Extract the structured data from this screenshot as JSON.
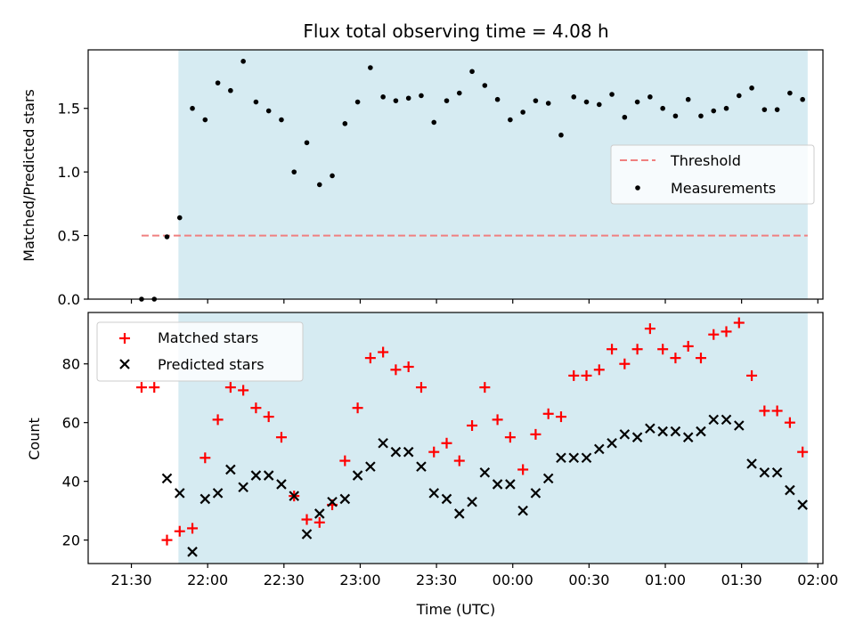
{
  "chart_data": [
    {
      "type": "scatter",
      "title": "Flux total observing time = 4.08 h",
      "xlabel": "",
      "ylabel": "Matched/Predicted stars",
      "x_unit": "minutes since 21:30 UTC",
      "xlim": [
        -17,
        272
      ],
      "ylim": [
        0,
        1.96
      ],
      "yticks": [
        0.0,
        0.5,
        1.0,
        1.5
      ],
      "ytick_labels": [
        "0.0",
        "0.5",
        "1.0",
        "1.5"
      ],
      "shaded_region": {
        "x_start": 18.5,
        "x_end": 266,
        "color": "#add8e6"
      },
      "threshold": {
        "name": "Threshold",
        "value": 0.5,
        "x_start": 4,
        "x_end": 266,
        "color": "#f08080"
      },
      "legend_position": "center-right",
      "series": [
        {
          "name": "Measurements",
          "marker": "dot",
          "color": "#000000",
          "x": [
            4,
            9,
            14,
            19,
            24,
            29,
            34,
            39,
            44,
            49,
            54,
            59,
            64,
            69,
            74,
            79,
            84,
            89,
            94,
            99,
            104,
            109,
            114,
            119,
            124,
            129,
            134,
            139,
            144,
            149,
            154,
            159,
            164,
            169,
            174,
            179,
            184,
            189,
            194,
            199,
            204,
            209,
            214,
            219,
            224,
            229,
            234,
            239,
            244,
            249,
            254,
            259,
            264
          ],
          "y": [
            0.0,
            0.0,
            0.49,
            0.64,
            1.5,
            1.41,
            1.7,
            1.64,
            1.87,
            1.55,
            1.48,
            1.41,
            1.0,
            1.23,
            0.9,
            0.97,
            1.38,
            1.55,
            1.82,
            1.59,
            1.56,
            1.58,
            1.6,
            1.39,
            1.56,
            1.62,
            1.79,
            1.68,
            1.57,
            1.41,
            1.47,
            1.56,
            1.54,
            1.29,
            1.59,
            1.55,
            1.53,
            1.61,
            1.43,
            1.55,
            1.59,
            1.5,
            1.44,
            1.57,
            1.44,
            1.48,
            1.5,
            1.6,
            1.66,
            1.49,
            1.49,
            1.62,
            1.57
          ]
        }
      ]
    },
    {
      "type": "scatter",
      "title": "",
      "xlabel": "Time (UTC)",
      "ylabel": "Count",
      "x_unit": "minutes since 21:30 UTC",
      "xlim": [
        -17,
        272
      ],
      "ylim": [
        12,
        97.5
      ],
      "yticks": [
        20,
        40,
        60,
        80
      ],
      "ytick_labels": [
        "20",
        "40",
        "60",
        "80"
      ],
      "xticks": [
        0,
        30,
        60,
        90,
        120,
        150,
        180,
        210,
        240,
        270
      ],
      "xtick_labels": [
        "21:30",
        "22:00",
        "22:30",
        "23:00",
        "23:30",
        "00:00",
        "00:30",
        "01:00",
        "01:30",
        "02:00"
      ],
      "shaded_region": {
        "x_start": 18.5,
        "x_end": 266,
        "color": "#add8e6"
      },
      "legend_position": "top-left",
      "series": [
        {
          "name": "Matched stars",
          "marker": "plus",
          "color": "#ff0000",
          "x": [
            4,
            9,
            14,
            19,
            24,
            29,
            34,
            39,
            44,
            49,
            54,
            59,
            64,
            69,
            74,
            79,
            84,
            89,
            94,
            99,
            104,
            109,
            114,
            119,
            124,
            129,
            134,
            139,
            144,
            149,
            154,
            159,
            164,
            169,
            174,
            179,
            184,
            189,
            194,
            199,
            204,
            209,
            214,
            219,
            224,
            229,
            234,
            239,
            244,
            249,
            254,
            259,
            264
          ],
          "y": [
            72,
            72,
            20,
            23,
            24,
            48,
            61,
            72,
            71,
            65,
            62,
            55,
            35,
            27,
            26,
            32,
            47,
            65,
            82,
            84,
            78,
            79,
            72,
            50,
            53,
            47,
            59,
            72,
            61,
            55,
            44,
            56,
            63,
            62,
            76,
            76,
            78,
            85,
            80,
            85,
            92,
            85,
            82,
            86,
            82,
            90,
            91,
            94,
            76,
            64,
            64,
            60,
            50
          ]
        },
        {
          "name": "Predicted stars",
          "marker": "x",
          "color": "#000000",
          "x": [
            14,
            19,
            24,
            29,
            34,
            39,
            44,
            49,
            54,
            59,
            64,
            69,
            74,
            79,
            84,
            89,
            94,
            99,
            104,
            109,
            114,
            119,
            124,
            129,
            134,
            139,
            144,
            149,
            154,
            159,
            164,
            169,
            174,
            179,
            184,
            189,
            194,
            199,
            204,
            209,
            214,
            219,
            224,
            229,
            234,
            239,
            244,
            249,
            254,
            259,
            264
          ],
          "y": [
            41,
            36,
            16,
            34,
            36,
            44,
            38,
            42,
            42,
            39,
            35,
            22,
            29,
            33,
            34,
            42,
            45,
            53,
            50,
            50,
            45,
            36,
            34,
            29,
            33,
            43,
            39,
            39,
            30,
            36,
            41,
            48,
            48,
            48,
            51,
            53,
            56,
            55,
            58,
            57,
            57,
            55,
            57,
            61,
            61,
            59,
            46,
            43,
            43,
            37,
            32
          ]
        }
      ]
    }
  ]
}
